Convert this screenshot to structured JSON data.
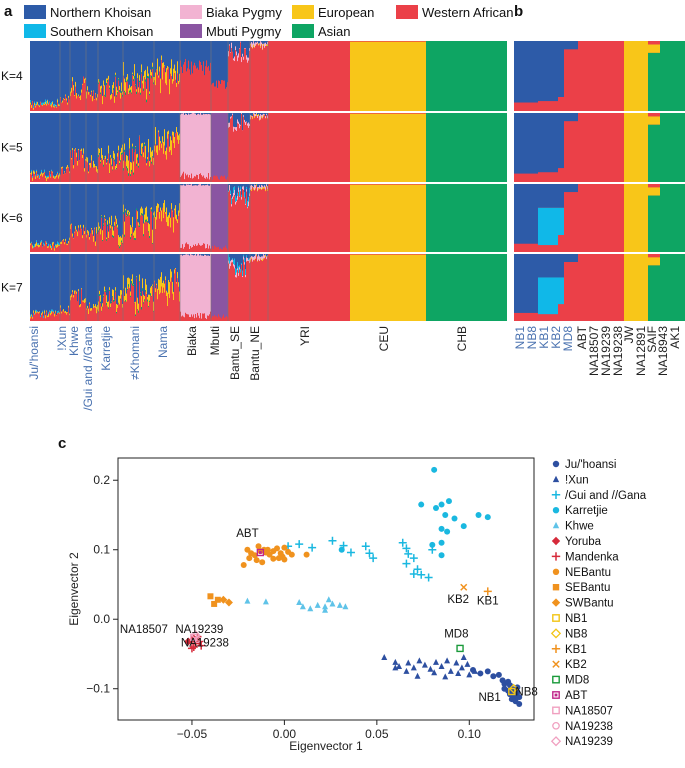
{
  "panel_a": {
    "letter": "a",
    "k_labels": [
      "K=4",
      "K=5",
      "K=6",
      "K=7"
    ],
    "legend": [
      {
        "label": "Northern Khoisan",
        "color": "#2d5ba8"
      },
      {
        "label": "Southern Khoisan",
        "color": "#10b8e8"
      },
      {
        "label": "Biaka Pygmy",
        "color": "#f2b3d2"
      },
      {
        "label": "Mbuti Pygmy",
        "color": "#8a55a2"
      },
      {
        "label": "European",
        "color": "#f8c619"
      },
      {
        "label": "Asian",
        "color": "#0ea563"
      },
      {
        "label": "Western African",
        "color": "#eb4048"
      }
    ],
    "populations": [
      {
        "label": "Ju/'hoansi",
        "color": "#4a72b0"
      },
      {
        "label": "!Xun",
        "color": "#4a72b0"
      },
      {
        "label": "Khwe",
        "color": "#4a72b0"
      },
      {
        "label": "/Gui and //Gana",
        "color": "#4a72b0"
      },
      {
        "label": "Karretjie",
        "color": "#4a72b0"
      },
      {
        "label": "≠Khomani",
        "color": "#4a72b0"
      },
      {
        "label": "Nama",
        "color": "#4a72b0"
      },
      {
        "label": "Biaka",
        "color": "#222222"
      },
      {
        "label": "Mbuti",
        "color": "#222222"
      },
      {
        "label": "Bantu_SE",
        "color": "#222222"
      },
      {
        "label": "Bantu_NE",
        "color": "#222222"
      },
      {
        "label": "YRI",
        "color": "#222222"
      },
      {
        "label": "CEU",
        "color": "#222222"
      },
      {
        "label": "CHB",
        "color": "#222222"
      }
    ]
  },
  "panel_b": {
    "letter": "b",
    "individuals": [
      {
        "label": "NB1",
        "color": "#4a72b0"
      },
      {
        "label": "NB8",
        "color": "#4a72b0"
      },
      {
        "label": "KB1",
        "color": "#4a72b0"
      },
      {
        "label": "KB2",
        "color": "#4a72b0"
      },
      {
        "label": "MD8",
        "color": "#4a72b0"
      },
      {
        "label": "ABT",
        "color": "#222222"
      },
      {
        "label": "NA18507",
        "color": "#222222"
      },
      {
        "label": "NA19239",
        "color": "#222222"
      },
      {
        "label": "NA19238",
        "color": "#222222"
      },
      {
        "label": "JW",
        "color": "#222222"
      },
      {
        "label": "NA12891",
        "color": "#222222"
      },
      {
        "label": "SAIF",
        "color": "#222222"
      },
      {
        "label": "NA18943",
        "color": "#222222"
      },
      {
        "label": "AK1",
        "color": "#222222"
      }
    ]
  },
  "chart_data": {
    "type": "scatter",
    "panel_letter": "c",
    "title": "",
    "xlabel": "Eigenvector 1",
    "ylabel": "Eigenvector 2",
    "xlim": [
      -0.09,
      0.135
    ],
    "ylim": [
      -0.145,
      0.232
    ],
    "xticks": [
      -0.05,
      0.0,
      0.05,
      0.1
    ],
    "xtick_labels": [
      "−0.05",
      "0.00",
      "0.05",
      "0.10"
    ],
    "yticks": [
      -0.1,
      0.0,
      0.1,
      0.2
    ],
    "ytick_labels": [
      "−0.1",
      "0.0",
      "0.1",
      "0.2"
    ],
    "grid": false,
    "legend_position": "right",
    "series": [
      {
        "name": "Ju/'hoansi",
        "marker": "circle",
        "color": "#2d4fa0",
        "points": [
          [
            0.102,
            -0.073
          ],
          [
            0.106,
            -0.078
          ],
          [
            0.11,
            -0.075
          ],
          [
            0.113,
            -0.082
          ],
          [
            0.116,
            -0.08
          ],
          [
            0.118,
            -0.088
          ],
          [
            0.119,
            -0.093
          ],
          [
            0.121,
            -0.09
          ],
          [
            0.122,
            -0.095
          ],
          [
            0.123,
            -0.1
          ],
          [
            0.121,
            -0.103
          ],
          [
            0.124,
            -0.105
          ],
          [
            0.125,
            -0.11
          ],
          [
            0.126,
            -0.098
          ],
          [
            0.124,
            -0.113
          ],
          [
            0.125,
            -0.118
          ],
          [
            0.127,
            -0.122
          ],
          [
            0.122,
            -0.108
          ],
          [
            0.126,
            -0.105
          ],
          [
            0.127,
            -0.112
          ],
          [
            0.119,
            -0.1
          ],
          [
            0.123,
            -0.115
          ]
        ]
      },
      {
        "name": "!Xun",
        "marker": "triangle",
        "color": "#2d4fa0",
        "points": [
          [
            0.054,
            -0.055
          ],
          [
            0.06,
            -0.062
          ],
          [
            0.062,
            -0.068
          ],
          [
            0.067,
            -0.063
          ],
          [
            0.07,
            -0.07
          ],
          [
            0.073,
            -0.06
          ],
          [
            0.076,
            -0.066
          ],
          [
            0.079,
            -0.072
          ],
          [
            0.082,
            -0.062
          ],
          [
            0.085,
            -0.068
          ],
          [
            0.088,
            -0.06
          ],
          [
            0.09,
            -0.075
          ],
          [
            0.093,
            -0.063
          ],
          [
            0.096,
            -0.07
          ],
          [
            0.099,
            -0.065
          ],
          [
            0.072,
            -0.082
          ],
          [
            0.081,
            -0.077
          ],
          [
            0.087,
            -0.083
          ],
          [
            0.094,
            -0.078
          ],
          [
            0.06,
            -0.07
          ],
          [
            0.066,
            -0.075
          ],
          [
            0.097,
            -0.055
          ],
          [
            0.1,
            -0.08
          ],
          [
            0.103,
            -0.075
          ]
        ]
      },
      {
        "name": "/Gui and //Gana",
        "marker": "plus",
        "color": "#1ab8e0",
        "points": [
          [
            0.002,
            0.105
          ],
          [
            0.008,
            0.108
          ],
          [
            0.015,
            0.103
          ],
          [
            0.026,
            0.113
          ],
          [
            0.032,
            0.106
          ],
          [
            0.036,
            0.096
          ],
          [
            0.044,
            0.105
          ],
          [
            0.046,
            0.095
          ],
          [
            0.048,
            0.088
          ],
          [
            0.064,
            0.11
          ],
          [
            0.066,
            0.102
          ],
          [
            0.067,
            0.094
          ],
          [
            0.07,
            0.088
          ],
          [
            0.072,
            0.072
          ],
          [
            0.074,
            0.064
          ],
          [
            0.078,
            0.06
          ],
          [
            0.07,
            0.065
          ],
          [
            0.08,
            0.1
          ],
          [
            0.066,
            0.08
          ]
        ]
      },
      {
        "name": "Karretjie",
        "marker": "circle",
        "color": "#1ab8e0",
        "points": [
          [
            0.081,
            0.215
          ],
          [
            0.085,
            0.165
          ],
          [
            0.082,
            0.16
          ],
          [
            0.074,
            0.165
          ],
          [
            0.089,
            0.17
          ],
          [
            0.087,
            0.15
          ],
          [
            0.092,
            0.145
          ],
          [
            0.105,
            0.15
          ],
          [
            0.11,
            0.147
          ],
          [
            0.085,
            0.13
          ],
          [
            0.088,
            0.126
          ],
          [
            0.097,
            0.134
          ],
          [
            0.085,
            0.11
          ],
          [
            0.08,
            0.107
          ],
          [
            0.085,
            0.092
          ],
          [
            0.031,
            0.1
          ]
        ]
      },
      {
        "name": "Khwe",
        "marker": "triangle",
        "color": "#5fc3e8",
        "points": [
          [
            -0.02,
            0.026
          ],
          [
            -0.01,
            0.025
          ],
          [
            0.008,
            0.024
          ],
          [
            0.01,
            0.018
          ],
          [
            0.014,
            0.015
          ],
          [
            0.018,
            0.02
          ],
          [
            0.022,
            0.018
          ],
          [
            0.026,
            0.022
          ],
          [
            0.024,
            0.028
          ],
          [
            0.03,
            0.02
          ],
          [
            0.033,
            0.018
          ],
          [
            0.022,
            0.013
          ]
        ]
      },
      {
        "name": "Yoruba",
        "marker": "diamond",
        "color": "#d62a3a",
        "points": [
          [
            -0.052,
            -0.032
          ],
          [
            -0.049,
            -0.028
          ]
        ]
      },
      {
        "name": "Mandenka",
        "marker": "plus",
        "color": "#d62a3a",
        "points": [
          [
            -0.05,
            -0.03
          ],
          [
            -0.048,
            -0.035
          ],
          [
            -0.047,
            -0.025
          ],
          [
            -0.049,
            -0.04
          ],
          [
            -0.046,
            -0.032
          ],
          [
            -0.045,
            -0.038
          ],
          [
            -0.05,
            -0.042
          ]
        ]
      },
      {
        "name": "NEBantu",
        "marker": "circle",
        "color": "#f0921e",
        "points": [
          [
            -0.022,
            0.078
          ],
          [
            -0.019,
            0.088
          ],
          [
            -0.016,
            0.092
          ],
          [
            -0.013,
            0.098
          ],
          [
            -0.011,
            0.1
          ],
          [
            -0.01,
            0.096
          ],
          [
            -0.008,
            0.093
          ],
          [
            -0.006,
            0.098
          ],
          [
            -0.004,
            0.102
          ],
          [
            -0.002,
            0.095
          ],
          [
            -0.001,
            0.09
          ],
          [
            0.002,
            0.097
          ],
          [
            -0.015,
            0.085
          ],
          [
            -0.012,
            0.082
          ],
          [
            -0.006,
            0.087
          ],
          [
            -0.003,
            0.088
          ],
          [
            0.0,
            0.086
          ],
          [
            0.004,
            0.093
          ],
          [
            -0.009,
            0.1
          ],
          [
            -0.018,
            0.095
          ],
          [
            -0.014,
            0.105
          ],
          [
            -0.02,
            0.1
          ],
          [
            0.012,
            0.093
          ],
          [
            0.0,
            0.103
          ]
        ]
      },
      {
        "name": "SEBantu",
        "marker": "square",
        "color": "#f0921e",
        "points": [
          [
            -0.04,
            0.033
          ],
          [
            -0.036,
            0.028
          ],
          [
            -0.038,
            0.022
          ]
        ]
      },
      {
        "name": "SWBantu",
        "marker": "diamond",
        "color": "#f0921e",
        "points": [
          [
            -0.033,
            0.028
          ],
          [
            -0.03,
            0.024
          ]
        ]
      },
      {
        "name": "NB1",
        "marker": "square-open",
        "color": "#f2c516",
        "points": [
          [
            0.123,
            -0.104
          ]
        ]
      },
      {
        "name": "NB8",
        "marker": "diamond-open",
        "color": "#f2c516",
        "points": [
          [
            0.124,
            -0.1
          ]
        ]
      },
      {
        "name": "KB1",
        "marker": "plus",
        "color": "#f0921e",
        "points": [
          [
            0.11,
            0.04
          ]
        ]
      },
      {
        "name": "KB2",
        "marker": "cross",
        "color": "#f0921e",
        "points": [
          [
            0.097,
            0.046
          ]
        ]
      },
      {
        "name": "MD8",
        "marker": "square-open",
        "color": "#1a9a3a",
        "points": [
          [
            0.095,
            -0.042
          ]
        ]
      },
      {
        "name": "ABT",
        "marker": "square-dot",
        "color": "#c0268a",
        "points": [
          [
            -0.013,
            0.096
          ]
        ]
      },
      {
        "name": "NA18507",
        "marker": "square-open",
        "color": "#f0a0c0",
        "points": [
          [
            -0.049,
            -0.026
          ]
        ]
      },
      {
        "name": "NA19238",
        "marker": "circle-open",
        "color": "#f0a0c0",
        "points": [
          [
            -0.047,
            -0.029
          ]
        ]
      },
      {
        "name": "NA19239",
        "marker": "diamond-open",
        "color": "#f0a0c0",
        "points": [
          [
            -0.048,
            -0.023
          ]
        ]
      }
    ],
    "annotations": [
      {
        "text": "ABT",
        "x": -0.02,
        "y": 0.118
      },
      {
        "text": "NA18507",
        "x": -0.076,
        "y": -0.02
      },
      {
        "text": "NA19239",
        "x": -0.046,
        "y": -0.02
      },
      {
        "text": "NA19238",
        "x": -0.043,
        "y": -0.039
      },
      {
        "text": "MD8",
        "x": 0.093,
        "y": -0.026
      },
      {
        "text": "KB2",
        "x": 0.094,
        "y": 0.023
      },
      {
        "text": "KB1",
        "x": 0.11,
        "y": 0.021
      },
      {
        "text": "NB1",
        "x": 0.111,
        "y": -0.118
      },
      {
        "text": "NB8",
        "x": 0.131,
        "y": -0.11
      }
    ]
  }
}
